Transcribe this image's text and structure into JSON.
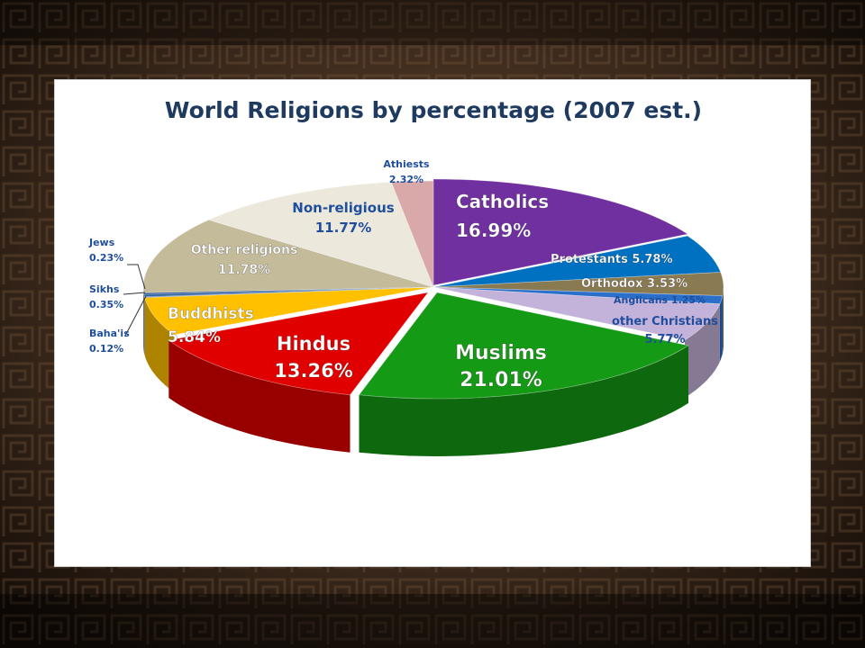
{
  "chart_data": {
    "type": "pie",
    "style": "3d-exploded",
    "title": "World Religions by percentage (2007 est.)",
    "slices": [
      {
        "name": "Catholics",
        "value_label": "16.99%",
        "value": 16.99,
        "color": "#7030a0"
      },
      {
        "name": "Protestants",
        "value_label": "5.78%",
        "value": 5.78,
        "color": "#0070c0"
      },
      {
        "name": "Orthodox",
        "value_label": "3.53%",
        "value": 3.53,
        "color": "#8a7a52"
      },
      {
        "name": "Anglicans",
        "value_label": "1.25%",
        "value": 1.25,
        "color": "#2a6fc9"
      },
      {
        "name": "other Christians",
        "value_label": "5.77%",
        "value": 5.77,
        "color": "#c3b2d9"
      },
      {
        "name": "Muslims",
        "value_label": "21.01%",
        "value": 21.01,
        "color": "#159a15"
      },
      {
        "name": "Hindus",
        "value_label": "13.26%",
        "value": 13.26,
        "color": "#e00000"
      },
      {
        "name": "Buddhists",
        "value_label": "5.84%",
        "value": 5.84,
        "color": "#ffc000"
      },
      {
        "name": "Baha'is",
        "value_label": "0.12%",
        "value": 0.12,
        "color": "#3a6ea8"
      },
      {
        "name": "Sikhs",
        "value_label": "0.35%",
        "value": 0.35,
        "color": "#2e5fa0"
      },
      {
        "name": "Jews",
        "value_label": "0.23%",
        "value": 0.23,
        "color": "#1e4f90"
      },
      {
        "name": "Other religions",
        "value_label": "11.78%",
        "value": 11.78,
        "color": "#c4bb9a"
      },
      {
        "name": "Non-religious",
        "value_label": "11.77%",
        "value": 11.77,
        "color": "#ece8dc"
      },
      {
        "name": "Athiests",
        "value_label": "2.32%",
        "value": 2.32,
        "color": "#d9a8a8"
      }
    ]
  }
}
